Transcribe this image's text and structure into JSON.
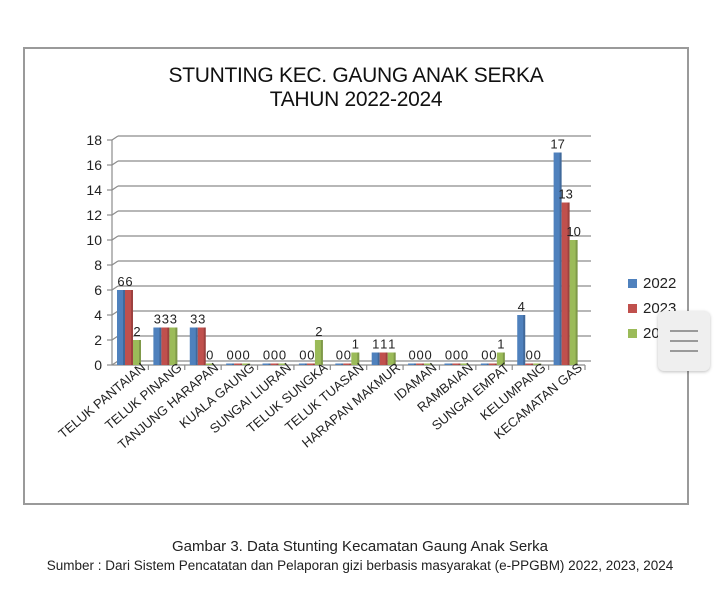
{
  "chart_data": {
    "type": "bar",
    "title": "STUNTING KEC. GAUNG ANAK SERKA",
    "subtitle": "TAHUN 2022-2024",
    "xlabel": "",
    "ylabel": "",
    "ylim": [
      0,
      18
    ],
    "yticks": [
      0,
      2,
      4,
      6,
      8,
      10,
      12,
      14,
      16,
      18
    ],
    "grid": true,
    "legend_position": "right",
    "categories": [
      "TELUK PANTAIAN",
      "TELUK PINANG",
      "TANJUNG HARAPAN",
      "KUALA GAUNG",
      "SUNGAI LIURAN",
      "TELUK SUNGKA",
      "TELUK TUASAN",
      "HARAPAN MAKMUR",
      "IDAMAN",
      "RAMBAIAN",
      "SUNGAI EMPAT",
      "KELUMPANG",
      "KECAMATAN GAS"
    ],
    "series": [
      {
        "name": "2022",
        "color": "#4f81bd",
        "values": [
          6,
          3,
          3,
          0,
          0,
          0,
          0,
          1,
          0,
          0,
          0,
          4,
          17
        ]
      },
      {
        "name": "2023",
        "color": "#c0504d",
        "values": [
          6,
          3,
          3,
          0,
          0,
          0,
          0,
          1,
          0,
          0,
          0,
          0,
          13
        ]
      },
      {
        "name": "2024",
        "color": "#9bbb59",
        "values": [
          2,
          3,
          0,
          0,
          0,
          2,
          1,
          1,
          0,
          0,
          1,
          0,
          10
        ]
      }
    ]
  },
  "title_line1": "STUNTING KEC. GAUNG ANAK SERKA",
  "title_line2": "TAHUN 2022-2024",
  "legend": [
    {
      "label": "2022",
      "color": "#4f81bd"
    },
    {
      "label": "2023",
      "color": "#c0504d"
    },
    {
      "label": "2024",
      "color": "#9bbb59"
    }
  ],
  "caption": {
    "figure": "Gambar 3. Data Stunting Kecamatan Gaung Anak Serka",
    "source": "Sumber : Dari Sistem Pencatatan dan Pelaporan gizi berbasis masyarakat (e-PPGBM) 2022, 2023, 2024"
  }
}
